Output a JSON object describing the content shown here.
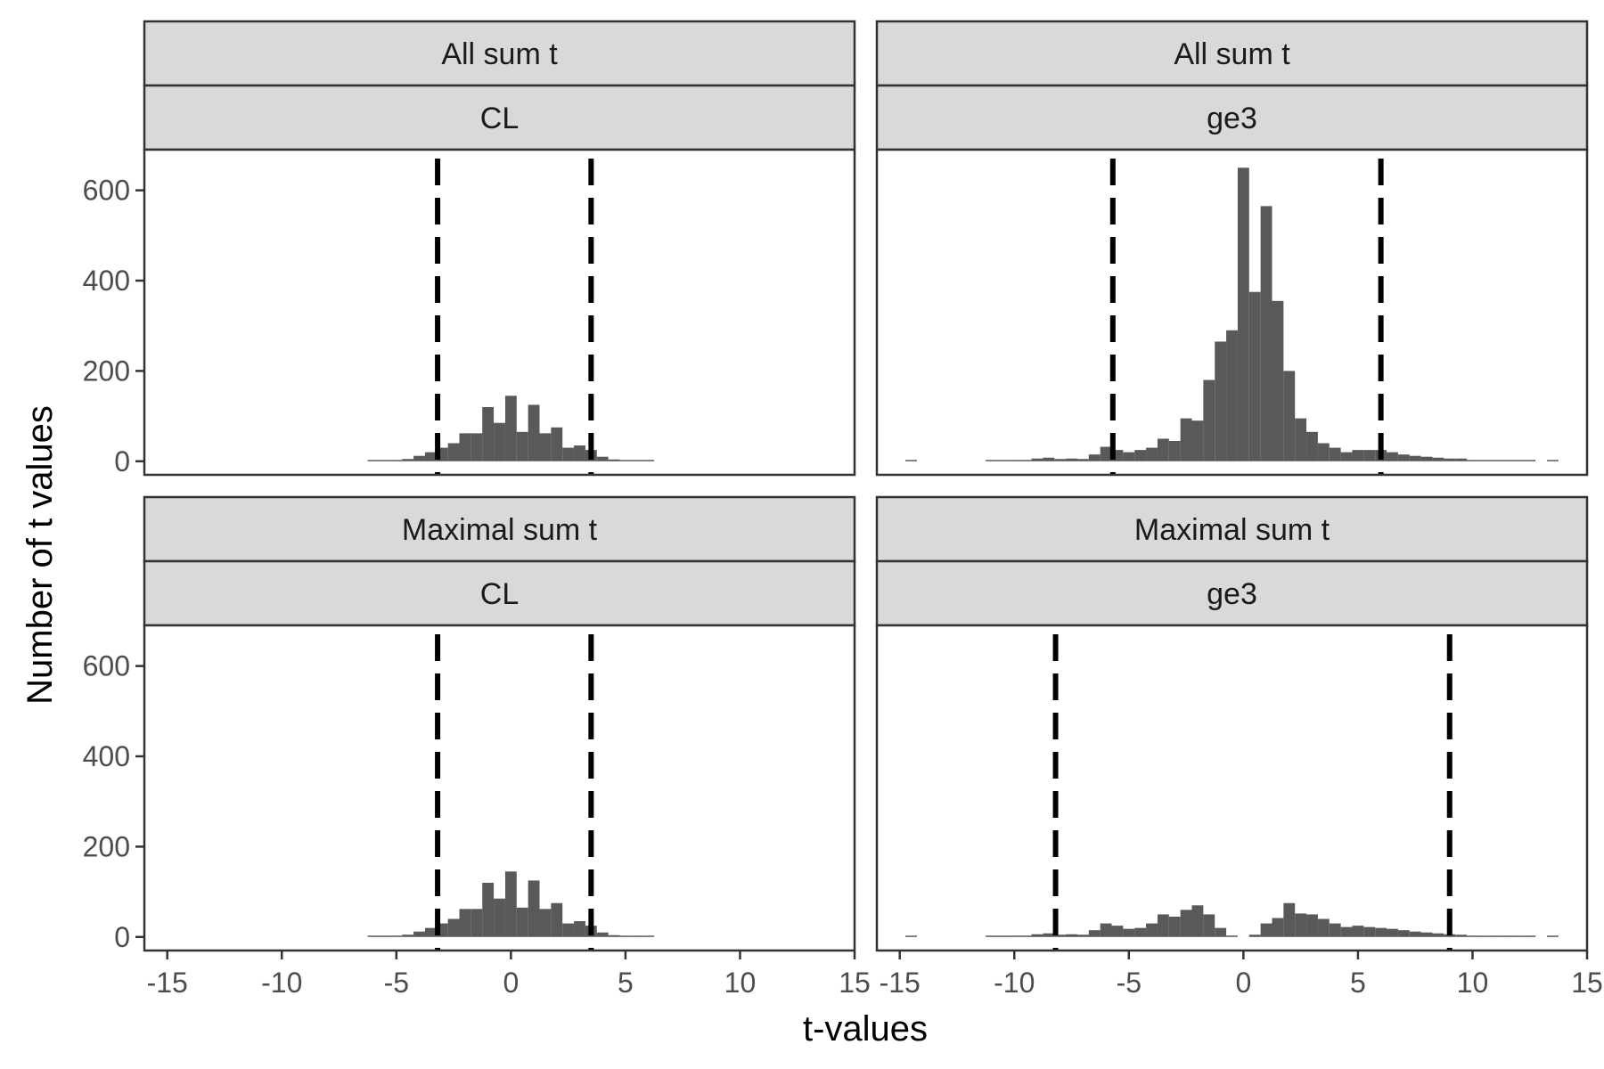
{
  "chart_data": {
    "type": "bar",
    "xlabel": "t-values",
    "ylabel": "Number of t values",
    "xlim": [
      -16,
      15
    ],
    "ylim": [
      -30,
      690
    ],
    "x_ticks": [
      -15,
      -10,
      -5,
      0,
      5,
      10,
      15
    ],
    "x_tick_labels": [
      "-15",
      "-10",
      "-5",
      "0",
      "5",
      "10",
      "15"
    ],
    "y_ticks": [
      0,
      200,
      400,
      600
    ],
    "y_tick_labels": [
      "0",
      "200",
      "400",
      "600"
    ],
    "grid": false,
    "legend": "none",
    "bar_color": "#595959",
    "bin_width": 0.5,
    "panels": [
      {
        "strip_top": "All sum t",
        "strip_bottom": "CL",
        "cutoffs": [
          -3.2,
          3.5
        ],
        "bins": [
          {
            "x": -6.0,
            "y": 2
          },
          {
            "x": -5.5,
            "y": 2
          },
          {
            "x": -5.0,
            "y": 3
          },
          {
            "x": -4.5,
            "y": 5
          },
          {
            "x": -4.0,
            "y": 12
          },
          {
            "x": -3.5,
            "y": 20
          },
          {
            "x": -3.0,
            "y": 30
          },
          {
            "x": -2.5,
            "y": 40
          },
          {
            "x": -2.0,
            "y": 62
          },
          {
            "x": -1.5,
            "y": 62
          },
          {
            "x": -1.0,
            "y": 120
          },
          {
            "x": -0.5,
            "y": 85
          },
          {
            "x": 0.0,
            "y": 145
          },
          {
            "x": 0.5,
            "y": 65
          },
          {
            "x": 1.0,
            "y": 125
          },
          {
            "x": 1.5,
            "y": 62
          },
          {
            "x": 2.0,
            "y": 75
          },
          {
            "x": 2.5,
            "y": 30
          },
          {
            "x": 3.0,
            "y": 35
          },
          {
            "x": 3.5,
            "y": 25
          },
          {
            "x": 4.0,
            "y": 10
          },
          {
            "x": 4.5,
            "y": 4
          },
          {
            "x": 5.0,
            "y": 2
          },
          {
            "x": 5.5,
            "y": 1
          },
          {
            "x": 6.0,
            "y": 1
          }
        ]
      },
      {
        "strip_top": "All sum t",
        "strip_bottom": "ge3",
        "cutoffs": [
          -5.7,
          6.0
        ],
        "bins": [
          {
            "x": -14.5,
            "y": 1
          },
          {
            "x": -11.0,
            "y": 2
          },
          {
            "x": -10.5,
            "y": 2
          },
          {
            "x": -10.0,
            "y": 3
          },
          {
            "x": -9.5,
            "y": 3
          },
          {
            "x": -9.0,
            "y": 6
          },
          {
            "x": -8.5,
            "y": 8
          },
          {
            "x": -8.0,
            "y": 5
          },
          {
            "x": -7.5,
            "y": 6
          },
          {
            "x": -7.0,
            "y": 5
          },
          {
            "x": -6.5,
            "y": 15
          },
          {
            "x": -6.0,
            "y": 32
          },
          {
            "x": -5.5,
            "y": 25
          },
          {
            "x": -5.0,
            "y": 20
          },
          {
            "x": -4.5,
            "y": 25
          },
          {
            "x": -4.0,
            "y": 30
          },
          {
            "x": -3.5,
            "y": 50
          },
          {
            "x": -3.0,
            "y": 45
          },
          {
            "x": -2.5,
            "y": 95
          },
          {
            "x": -2.0,
            "y": 90
          },
          {
            "x": -1.5,
            "y": 180
          },
          {
            "x": -1.0,
            "y": 265
          },
          {
            "x": -0.5,
            "y": 290
          },
          {
            "x": 0.0,
            "y": 650
          },
          {
            "x": 0.5,
            "y": 375
          },
          {
            "x": 1.0,
            "y": 565
          },
          {
            "x": 1.5,
            "y": 355
          },
          {
            "x": 2.0,
            "y": 200
          },
          {
            "x": 2.5,
            "y": 95
          },
          {
            "x": 3.0,
            "y": 65
          },
          {
            "x": 3.5,
            "y": 40
          },
          {
            "x": 4.0,
            "y": 30
          },
          {
            "x": 4.5,
            "y": 20
          },
          {
            "x": 5.0,
            "y": 25
          },
          {
            "x": 5.5,
            "y": 25
          },
          {
            "x": 6.0,
            "y": 25
          },
          {
            "x": 6.5,
            "y": 20
          },
          {
            "x": 7.0,
            "y": 15
          },
          {
            "x": 7.5,
            "y": 12
          },
          {
            "x": 8.0,
            "y": 10
          },
          {
            "x": 8.5,
            "y": 8
          },
          {
            "x": 9.0,
            "y": 6
          },
          {
            "x": 9.5,
            "y": 6
          },
          {
            "x": 10.0,
            "y": 3
          },
          {
            "x": 10.5,
            "y": 2
          },
          {
            "x": 11.0,
            "y": 2
          },
          {
            "x": 11.5,
            "y": 2
          },
          {
            "x": 12.0,
            "y": 1
          },
          {
            "x": 12.5,
            "y": 1
          },
          {
            "x": 13.5,
            "y": 1
          }
        ]
      },
      {
        "strip_top": "Maximal sum t",
        "strip_bottom": "CL",
        "cutoffs": [
          -3.2,
          3.5
        ],
        "bins": [
          {
            "x": -6.0,
            "y": 2
          },
          {
            "x": -5.5,
            "y": 2
          },
          {
            "x": -5.0,
            "y": 3
          },
          {
            "x": -4.5,
            "y": 5
          },
          {
            "x": -4.0,
            "y": 12
          },
          {
            "x": -3.5,
            "y": 20
          },
          {
            "x": -3.0,
            "y": 30
          },
          {
            "x": -2.5,
            "y": 40
          },
          {
            "x": -2.0,
            "y": 62
          },
          {
            "x": -1.5,
            "y": 62
          },
          {
            "x": -1.0,
            "y": 120
          },
          {
            "x": -0.5,
            "y": 85
          },
          {
            "x": 0.0,
            "y": 145
          },
          {
            "x": 0.5,
            "y": 65
          },
          {
            "x": 1.0,
            "y": 125
          },
          {
            "x": 1.5,
            "y": 62
          },
          {
            "x": 2.0,
            "y": 75
          },
          {
            "x": 2.5,
            "y": 30
          },
          {
            "x": 3.0,
            "y": 35
          },
          {
            "x": 3.5,
            "y": 25
          },
          {
            "x": 4.0,
            "y": 10
          },
          {
            "x": 4.5,
            "y": 4
          },
          {
            "x": 5.0,
            "y": 2
          },
          {
            "x": 5.5,
            "y": 1
          },
          {
            "x": 6.0,
            "y": 1
          }
        ]
      },
      {
        "strip_top": "Maximal sum t",
        "strip_bottom": "ge3",
        "cutoffs": [
          -8.2,
          9.0
        ],
        "bins": [
          {
            "x": -14.5,
            "y": 1
          },
          {
            "x": -11.0,
            "y": 2
          },
          {
            "x": -10.5,
            "y": 2
          },
          {
            "x": -10.0,
            "y": 3
          },
          {
            "x": -9.5,
            "y": 3
          },
          {
            "x": -9.0,
            "y": 6
          },
          {
            "x": -8.5,
            "y": 8
          },
          {
            "x": -8.0,
            "y": 5
          },
          {
            "x": -7.5,
            "y": 6
          },
          {
            "x": -7.0,
            "y": 5
          },
          {
            "x": -6.5,
            "y": 15
          },
          {
            "x": -6.0,
            "y": 30
          },
          {
            "x": -5.5,
            "y": 25
          },
          {
            "x": -5.0,
            "y": 18
          },
          {
            "x": -4.5,
            "y": 20
          },
          {
            "x": -4.0,
            "y": 30
          },
          {
            "x": -3.5,
            "y": 50
          },
          {
            "x": -3.0,
            "y": 45
          },
          {
            "x": -2.5,
            "y": 60
          },
          {
            "x": -2.0,
            "y": 70
          },
          {
            "x": -1.5,
            "y": 50
          },
          {
            "x": -1.0,
            "y": 20
          },
          {
            "x": -0.5,
            "y": 3
          },
          {
            "x": 0.5,
            "y": 5
          },
          {
            "x": 1.0,
            "y": 30
          },
          {
            "x": 1.5,
            "y": 42
          },
          {
            "x": 2.0,
            "y": 75
          },
          {
            "x": 2.5,
            "y": 52
          },
          {
            "x": 3.0,
            "y": 50
          },
          {
            "x": 3.5,
            "y": 40
          },
          {
            "x": 4.0,
            "y": 30
          },
          {
            "x": 4.5,
            "y": 22
          },
          {
            "x": 5.0,
            "y": 25
          },
          {
            "x": 5.5,
            "y": 22
          },
          {
            "x": 6.0,
            "y": 20
          },
          {
            "x": 6.5,
            "y": 18
          },
          {
            "x": 7.0,
            "y": 15
          },
          {
            "x": 7.5,
            "y": 12
          },
          {
            "x": 8.0,
            "y": 10
          },
          {
            "x": 8.5,
            "y": 8
          },
          {
            "x": 9.0,
            "y": 6
          },
          {
            "x": 9.5,
            "y": 5
          },
          {
            "x": 10.0,
            "y": 3
          },
          {
            "x": 10.5,
            "y": 2
          },
          {
            "x": 11.0,
            "y": 2
          },
          {
            "x": 11.5,
            "y": 2
          },
          {
            "x": 12.0,
            "y": 1
          },
          {
            "x": 12.5,
            "y": 1
          },
          {
            "x": 13.5,
            "y": 1
          }
        ]
      }
    ]
  }
}
